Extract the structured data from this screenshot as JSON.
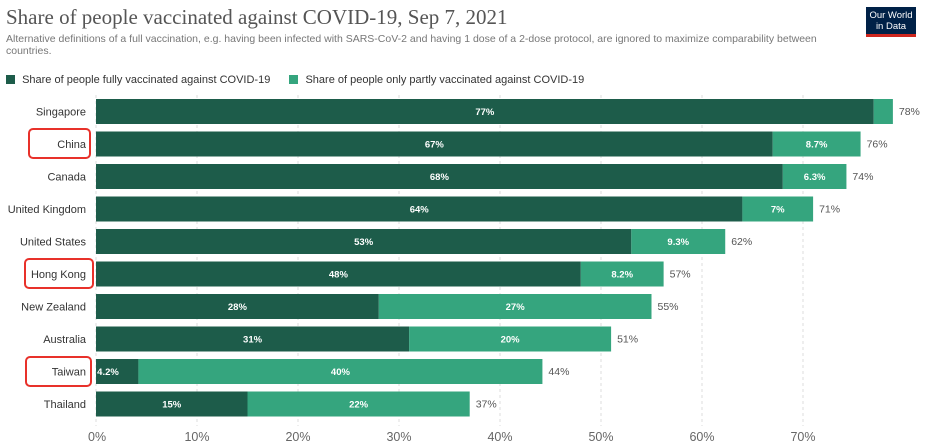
{
  "title": "Share of people vaccinated against COVID-19, Sep 7, 2021",
  "subtitle": "Alternative definitions of a full vaccination, e.g. having been infected with SARS-CoV-2 and having 1 dose of a 2-dose protocol, are ignored to maximize comparability between countries.",
  "logo": {
    "line1": "Our World",
    "line2": "in Data"
  },
  "colors": {
    "full": "#1d5c4a",
    "partial": "#35a57e",
    "highlight": "#e8312a"
  },
  "highlighted_countries": [
    "China",
    "Hong Kong",
    "Taiwan"
  ],
  "chart_data": {
    "type": "bar",
    "orientation": "horizontal",
    "stacked": true,
    "title": "Share of people vaccinated against COVID-19, Sep 7, 2021",
    "xlabel": "",
    "ylabel": "",
    "xlim": [
      0,
      78
    ],
    "x_ticks": [
      "0%",
      "10%",
      "20%",
      "30%",
      "40%",
      "50%",
      "60%",
      "70%"
    ],
    "x_tick_values": [
      0,
      10,
      20,
      30,
      40,
      50,
      60,
      70
    ],
    "categories": [
      "Singapore",
      "China",
      "Canada",
      "United Kingdom",
      "United States",
      "Hong Kong",
      "New Zealand",
      "Australia",
      "Taiwan",
      "Thailand"
    ],
    "series": [
      {
        "name": "Share of people fully vaccinated against COVID-19",
        "values": [
          77,
          67,
          68,
          64,
          53,
          48,
          28,
          31,
          4.2,
          15
        ],
        "labels": [
          "77%",
          "67%",
          "68%",
          "64%",
          "53%",
          "48%",
          "28%",
          "31%",
          "4.2%",
          "15%"
        ]
      },
      {
        "name": "Share of people only partly vaccinated against COVID-19",
        "values": [
          1.9,
          8.7,
          6.3,
          7,
          9.3,
          8.2,
          27,
          20,
          40,
          22
        ],
        "labels": [
          "",
          "8.7%",
          "6.3%",
          "7%",
          "9.3%",
          "8.2%",
          "27%",
          "20%",
          "40%",
          "22%"
        ]
      }
    ],
    "totals": [
      "78%",
      "76%",
      "74%",
      "71%",
      "62%",
      "57%",
      "55%",
      "51%",
      "44%",
      "37%"
    ],
    "grid": true,
    "legend_position": "top-left"
  }
}
